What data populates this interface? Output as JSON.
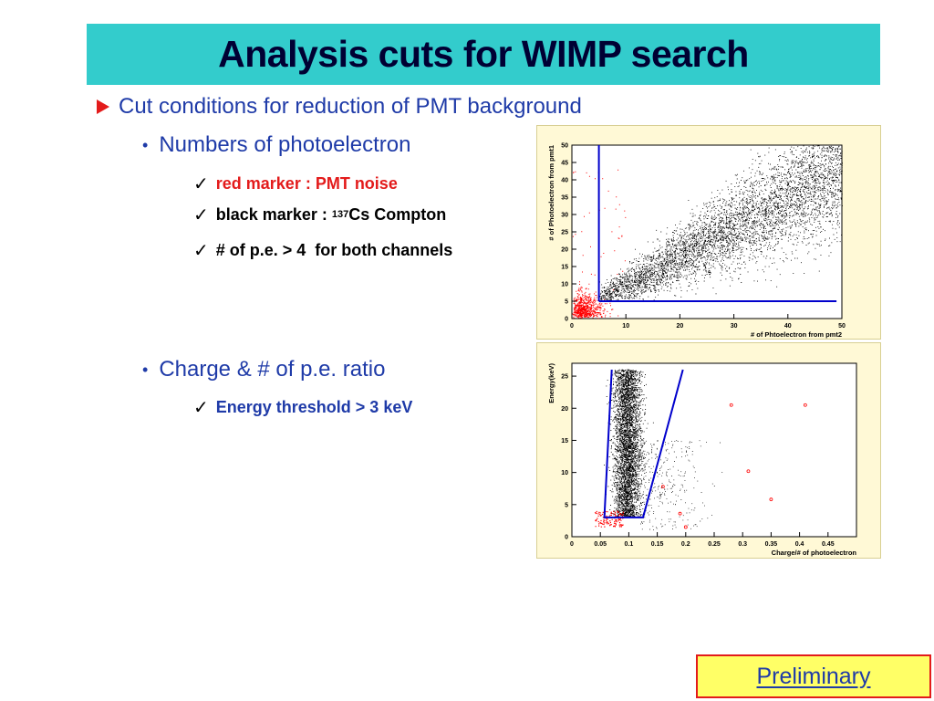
{
  "slide": {
    "title": "Analysis cuts for WIMP search",
    "main_bullet": "Cut conditions for reduction of PMT background",
    "section1": {
      "heading": "Numbers of photoelectron",
      "items": [
        {
          "text": "red marker : PMT noise",
          "color": "#e31b1b"
        },
        {
          "text_pre": "black marker : ",
          "sup": "137",
          "text_post": "Cs Compton",
          "color": "#000000"
        },
        {
          "text": "# of p.e. > 4  for both channels",
          "color": "#000000"
        }
      ]
    },
    "section2": {
      "heading": "Charge & # of p.e. ratio",
      "items": [
        {
          "text": "Energy threshold > 3 keV",
          "color": "#1f3ba8"
        }
      ]
    },
    "badge": "Preliminary"
  },
  "colors": {
    "title_bg": "#33cccc",
    "text_blue": "#1f3ba8",
    "accent_red": "#e31b1b",
    "badge_bg": "#ffff66",
    "panel_bg": "#fff9d6"
  },
  "chart_data": [
    {
      "type": "scatter",
      "xlabel": "# of Phtoelectron from pmt2",
      "ylabel": "# of Photoelectron from pmt1",
      "xlim": [
        0,
        50
      ],
      "ylim": [
        0,
        50
      ],
      "xticks": [
        0,
        10,
        20,
        30,
        40,
        50
      ],
      "yticks": [
        0,
        5,
        10,
        15,
        20,
        25,
        30,
        35,
        40,
        45,
        50
      ],
      "series": [
        {
          "color": "#000000",
          "description_points": "correlated band from (5,5) to (50,45)"
        },
        {
          "color": "#ff0000",
          "description_points": "cluster below 10 p.e. on both axes"
        }
      ],
      "cut_lines": [
        {
          "color": "#0000cc",
          "points": [
            [
              5,
              50
            ],
            [
              5,
              5
            ]
          ]
        },
        {
          "color": "#0000cc",
          "points": [
            [
              5,
              5
            ],
            [
              49,
              5
            ]
          ]
        }
      ]
    },
    {
      "type": "scatter",
      "xlabel": "Charge/# of photoelectron",
      "ylabel": "Energy(keV)",
      "xlim": [
        0,
        0.5
      ],
      "ylim": [
        0,
        27
      ],
      "xticks": [
        0,
        0.05,
        0.1,
        0.15,
        0.2,
        0.25,
        0.3,
        0.35,
        0.4,
        0.45
      ],
      "yticks": [
        0,
        5,
        10,
        15,
        20,
        25
      ],
      "series": [
        {
          "color": "#000000",
          "description_points": "dense vertical band around x=0.1"
        },
        {
          "color": "#ff0000",
          "description_points": "sparse points near threshold and outliers"
        }
      ],
      "cut_lines": [
        {
          "color": "#0000cc",
          "points": [
            [
              0.07,
              26
            ],
            [
              0.057,
              3
            ],
            [
              0.125,
              3
            ],
            [
              0.195,
              26
            ]
          ]
        }
      ]
    }
  ]
}
